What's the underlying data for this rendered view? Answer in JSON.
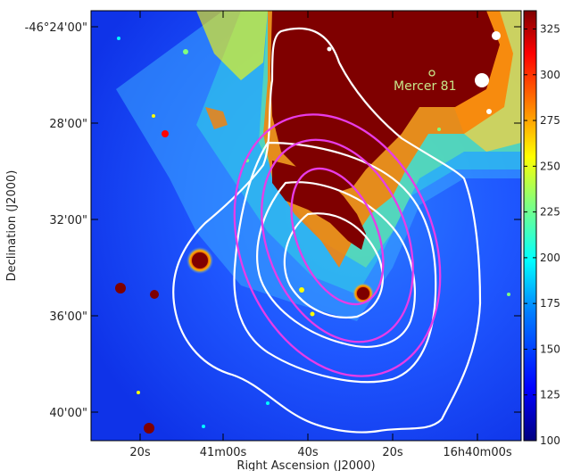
{
  "figure": {
    "ylabel": "Declination (J2000)",
    "xlabel": "Right Ascension (J2000)",
    "y_ticks": [
      "-46°24'00\"",
      "28'00\"",
      "32'00\"",
      "36'00\"",
      "40'00\""
    ],
    "x_ticks": [
      "20s",
      "41m00s",
      "40s",
      "20s",
      "16h40m00s"
    ],
    "annotation": {
      "text": "Mercer 81",
      "color": "#c8e68a"
    },
    "contour_colors": {
      "white": "#ffffff",
      "magenta": "#e83ce8"
    },
    "colormap": [
      "#00007f",
      "#0000ff",
      "#007fff",
      "#00ffff",
      "#7fff7f",
      "#ffff00",
      "#ff7f00",
      "#ff0000",
      "#7f0000"
    ]
  },
  "colorbar": {
    "range": [
      100,
      335
    ],
    "tick_labels": [
      "325",
      "300",
      "275",
      "250",
      "225",
      "200",
      "175",
      "150",
      "125",
      "100"
    ],
    "tick_values": [
      325,
      300,
      275,
      250,
      225,
      200,
      175,
      150,
      125,
      100
    ]
  }
}
